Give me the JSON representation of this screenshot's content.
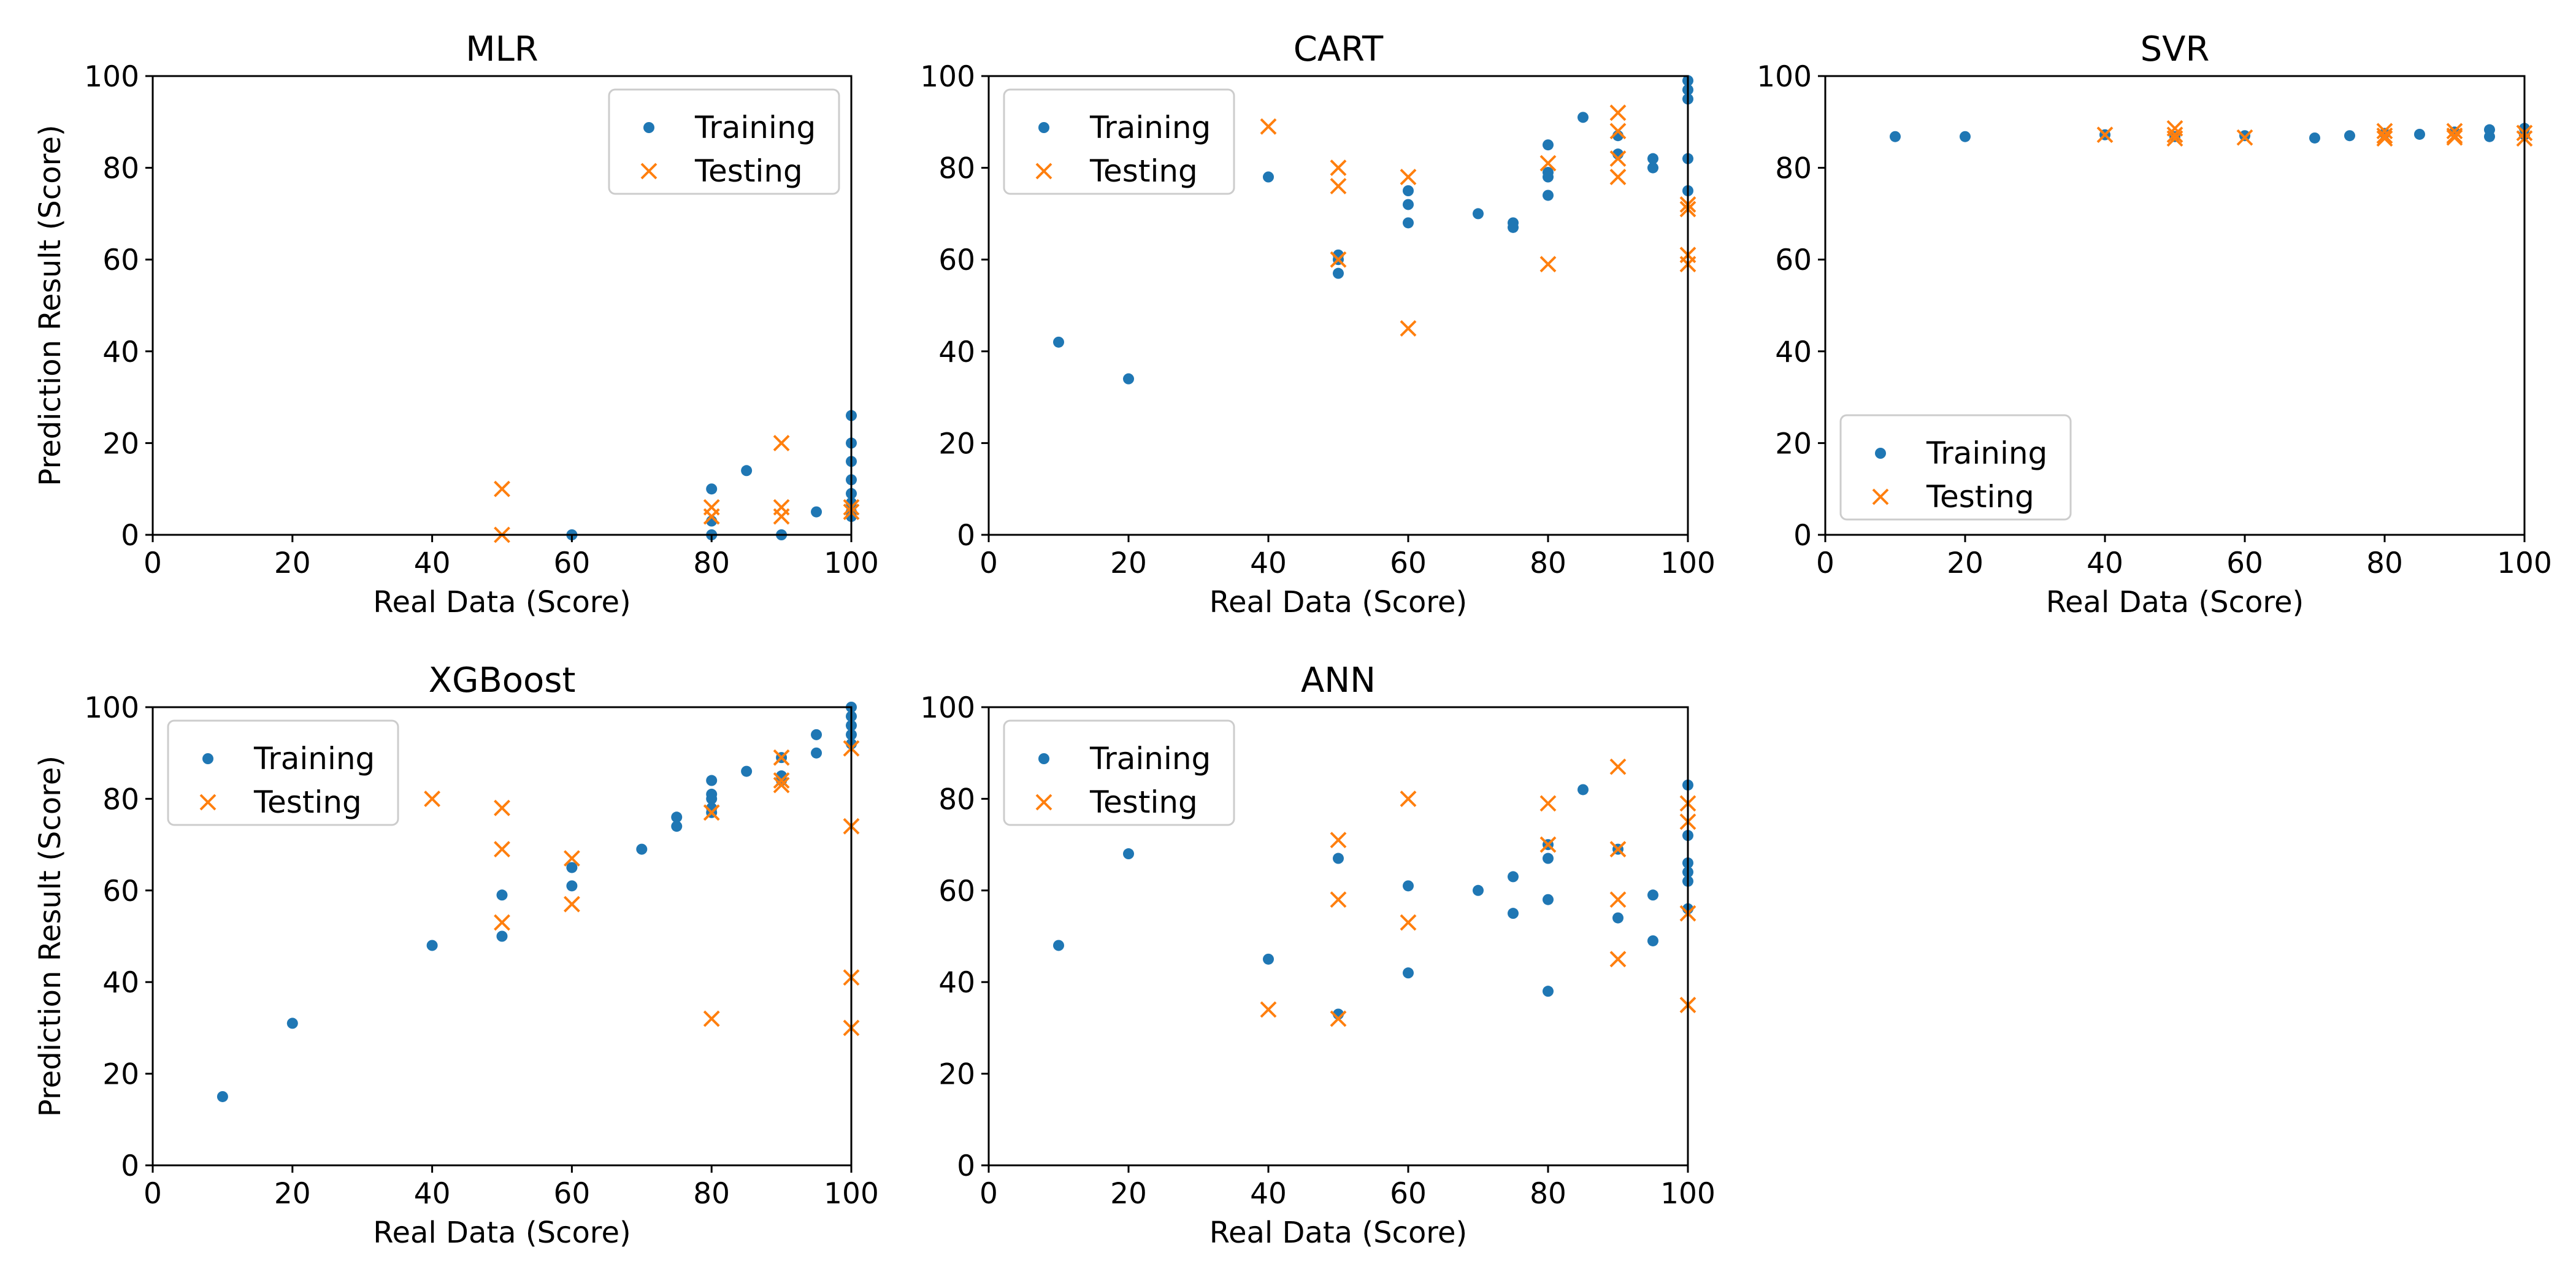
{
  "figure": {
    "colors": {
      "training": "#1f77b4",
      "testing": "#ff7f0e"
    },
    "legend_labels": {
      "training": "Training",
      "testing": "Testing"
    }
  },
  "chart_data": [
    {
      "type": "scatter",
      "title": "MLR",
      "xlabel": "Real Data (Score)",
      "ylabel": "Prediction Result (Score)",
      "xlim": [
        0,
        100
      ],
      "ylim": [
        0,
        100
      ],
      "xticks": [
        0,
        20,
        40,
        60,
        80,
        100
      ],
      "yticks": [
        0,
        20,
        40,
        60,
        80,
        100
      ],
      "legend": "top-right",
      "series": [
        {
          "name": "Training",
          "marker": "dot",
          "x": [
            60,
            80,
            80,
            80,
            85,
            90,
            95,
            100,
            100,
            100,
            100,
            100,
            100,
            100,
            100
          ],
          "y": [
            0,
            0,
            3,
            10,
            14,
            0,
            5,
            26,
            20,
            16,
            12,
            9,
            7,
            5,
            4
          ]
        },
        {
          "name": "Testing",
          "marker": "x",
          "x": [
            50,
            50,
            80,
            80,
            90,
            90,
            90,
            100,
            100
          ],
          "y": [
            0,
            10,
            6,
            4,
            20,
            6,
            4,
            6,
            5
          ]
        }
      ]
    },
    {
      "type": "scatter",
      "title": "CART",
      "xlabel": "Real Data (Score)",
      "ylabel": "",
      "xlim": [
        0,
        100
      ],
      "ylim": [
        0,
        100
      ],
      "xticks": [
        0,
        20,
        40,
        60,
        80,
        100
      ],
      "yticks": [
        0,
        20,
        40,
        60,
        80,
        100
      ],
      "legend": "top-left",
      "series": [
        {
          "name": "Training",
          "marker": "dot",
          "x": [
            10,
            20,
            40,
            50,
            50,
            50,
            60,
            60,
            60,
            70,
            75,
            75,
            80,
            80,
            80,
            80,
            85,
            90,
            90,
            95,
            95,
            100,
            100,
            100,
            100,
            100
          ],
          "y": [
            42,
            34,
            78,
            61,
            60,
            57,
            75,
            72,
            68,
            70,
            68,
            67,
            85,
            79,
            78,
            74,
            91,
            87,
            83,
            82,
            80,
            99,
            97,
            95,
            82,
            75
          ]
        },
        {
          "name": "Testing",
          "marker": "x",
          "x": [
            40,
            50,
            50,
            50,
            60,
            60,
            80,
            80,
            90,
            90,
            90,
            90,
            100,
            100,
            100,
            100
          ],
          "y": [
            89,
            80,
            76,
            60,
            78,
            45,
            81,
            59,
            92,
            88,
            82,
            78,
            72,
            71,
            61,
            59
          ]
        }
      ]
    },
    {
      "type": "scatter",
      "title": "SVR",
      "xlabel": "Real Data (Score)",
      "ylabel": "",
      "xlim": [
        0,
        100
      ],
      "ylim": [
        0,
        100
      ],
      "xticks": [
        0,
        20,
        40,
        60,
        80,
        100
      ],
      "yticks": [
        0,
        20,
        40,
        60,
        80,
        100
      ],
      "legend": "bottom-left",
      "series": [
        {
          "name": "Training",
          "marker": "dot",
          "x": [
            10,
            20,
            40,
            50,
            60,
            70,
            75,
            80,
            85,
            90,
            95,
            95,
            100,
            100
          ],
          "y": [
            86.8,
            86.8,
            87.2,
            86.8,
            87.0,
            86.5,
            87.0,
            87.5,
            87.3,
            87.8,
            86.8,
            88.3,
            88.6,
            87.2
          ]
        },
        {
          "name": "Testing",
          "marker": "x",
          "x": [
            40,
            50,
            50,
            50,
            60,
            80,
            80,
            80,
            90,
            90,
            90,
            100,
            100
          ],
          "y": [
            87.2,
            88.6,
            87.2,
            86.4,
            86.6,
            88.0,
            87.0,
            86.4,
            88.0,
            87.0,
            86.6,
            87.6,
            86.4
          ]
        }
      ]
    },
    {
      "type": "scatter",
      "title": "XGBoost",
      "xlabel": "Real Data (Score)",
      "ylabel": "Prediction Result (Score)",
      "xlim": [
        0,
        100
      ],
      "ylim": [
        0,
        100
      ],
      "xticks": [
        0,
        20,
        40,
        60,
        80,
        100
      ],
      "yticks": [
        0,
        20,
        40,
        60,
        80,
        100
      ],
      "legend": "top-left",
      "series": [
        {
          "name": "Training",
          "marker": "dot",
          "x": [
            10,
            20,
            40,
            50,
            50,
            60,
            60,
            70,
            75,
            75,
            80,
            80,
            80,
            80,
            80,
            85,
            90,
            90,
            90,
            95,
            95,
            100,
            100,
            100,
            100,
            100
          ],
          "y": [
            15,
            31,
            48,
            59,
            50,
            65,
            61,
            69,
            76,
            74,
            84,
            81,
            80,
            78,
            77,
            86,
            89,
            85,
            84,
            94,
            90,
            100,
            98,
            96,
            94,
            92
          ]
        },
        {
          "name": "Testing",
          "marker": "x",
          "x": [
            40,
            50,
            50,
            50,
            60,
            60,
            80,
            80,
            90,
            90,
            90,
            100,
            100,
            100,
            100
          ],
          "y": [
            80,
            78,
            69,
            53,
            67,
            57,
            77,
            32,
            89,
            84,
            83,
            91,
            74,
            41,
            30
          ]
        }
      ]
    },
    {
      "type": "scatter",
      "title": "ANN",
      "xlabel": "Real Data (Score)",
      "ylabel": "",
      "xlim": [
        0,
        100
      ],
      "ylim": [
        0,
        100
      ],
      "xticks": [
        0,
        20,
        40,
        60,
        80,
        100
      ],
      "yticks": [
        0,
        20,
        40,
        60,
        80,
        100
      ],
      "legend": "top-left",
      "series": [
        {
          "name": "Training",
          "marker": "dot",
          "x": [
            10,
            20,
            40,
            50,
            50,
            60,
            60,
            70,
            75,
            75,
            80,
            80,
            80,
            80,
            85,
            90,
            90,
            95,
            95,
            100,
            100,
            100,
            100,
            100,
            100
          ],
          "y": [
            48,
            68,
            45,
            67,
            33,
            61,
            42,
            60,
            63,
            55,
            70,
            67,
            58,
            38,
            82,
            69,
            54,
            59,
            49,
            83,
            72,
            66,
            64,
            62,
            56
          ]
        },
        {
          "name": "Testing",
          "marker": "x",
          "x": [
            40,
            50,
            50,
            50,
            60,
            60,
            80,
            80,
            90,
            90,
            90,
            90,
            100,
            100,
            100,
            100
          ],
          "y": [
            34,
            71,
            58,
            32,
            80,
            53,
            79,
            70,
            87,
            69,
            58,
            45,
            79,
            75,
            55,
            35
          ]
        }
      ]
    }
  ]
}
